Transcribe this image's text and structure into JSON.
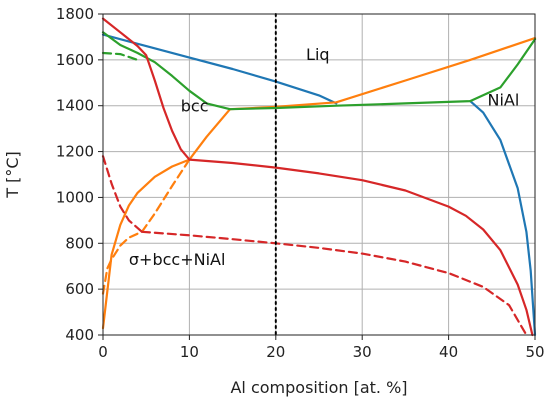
{
  "chart_data": {
    "type": "line",
    "title": "",
    "xlabel": "Al composition [at. %]",
    "ylabel": "T [°C]",
    "xlim": [
      0,
      50
    ],
    "ylim": [
      400,
      1800
    ],
    "xticks": [
      0,
      10,
      20,
      30,
      40,
      50
    ],
    "yticks": [
      400,
      600,
      800,
      1000,
      1200,
      1400,
      1600,
      1800
    ],
    "grid": true,
    "colors": {
      "blue": "#1f77b4",
      "orange": "#ff7f0e",
      "green": "#2ca02c",
      "red": "#d62728",
      "marker": "#000000"
    },
    "annotations": [
      {
        "text": "Liq",
        "x": 23.5,
        "y": 1600
      },
      {
        "text": "bcc",
        "x": 9,
        "y": 1375
      },
      {
        "text": "NiAl",
        "x": 44.5,
        "y": 1400
      },
      {
        "text": "σ+bcc+NiAl",
        "x": 3,
        "y": 705
      }
    ],
    "vlines": [
      {
        "x": 20,
        "style": "dotted",
        "color": "#000000"
      }
    ],
    "series": [
      {
        "color": "blue",
        "style": "solid",
        "x": [
          0,
          5,
          10,
          15,
          20,
          25,
          27
        ],
        "y": [
          1710,
          1660,
          1610,
          1560,
          1505,
          1445,
          1410
        ]
      },
      {
        "color": "blue",
        "style": "solid",
        "x": [
          42.5,
          44,
          46,
          48,
          49,
          49.5,
          50
        ],
        "y": [
          1420,
          1370,
          1250,
          1040,
          850,
          680,
          400
        ]
      },
      {
        "color": "orange",
        "style": "solid",
        "x": [
          14.7,
          20,
          27,
          35,
          42.5,
          50
        ],
        "y": [
          1385,
          1395,
          1415,
          1510,
          1600,
          1695
        ]
      },
      {
        "color": "orange",
        "style": "solid",
        "x": [
          0,
          1,
          2,
          3,
          4,
          6,
          8,
          10,
          12,
          14.7
        ],
        "y": [
          430,
          750,
          880,
          965,
          1020,
          1090,
          1135,
          1165,
          1265,
          1385
        ]
      },
      {
        "color": "orange",
        "style": "dashed",
        "x": [
          0,
          0.5,
          1,
          2,
          3,
          4.5,
          6,
          8,
          10
        ],
        "y": [
          580,
          690,
          730,
          790,
          825,
          850,
          930,
          1050,
          1165
        ]
      },
      {
        "color": "green",
        "style": "solid",
        "x": [
          0,
          2,
          4,
          6,
          8,
          10,
          12,
          14.7,
          20,
          27,
          35,
          42.5,
          46,
          48,
          50
        ],
        "y": [
          1720,
          1665,
          1630,
          1590,
          1530,
          1465,
          1410,
          1385,
          1390,
          1400,
          1410,
          1420,
          1480,
          1580,
          1690
        ]
      },
      {
        "color": "green",
        "style": "dashed",
        "x": [
          0,
          2,
          4
        ],
        "y": [
          1630,
          1625,
          1600
        ]
      },
      {
        "color": "red",
        "style": "solid",
        "x": [
          0,
          2,
          4,
          5,
          6,
          7,
          8,
          9,
          10
        ],
        "y": [
          1780,
          1720,
          1660,
          1620,
          1510,
          1390,
          1290,
          1210,
          1165
        ]
      },
      {
        "color": "red",
        "style": "solid",
        "x": [
          10,
          15,
          20,
          25,
          30,
          35,
          40,
          42,
          44,
          46,
          48,
          49,
          49.7
        ],
        "y": [
          1165,
          1150,
          1130,
          1105,
          1075,
          1030,
          960,
          920,
          860,
          770,
          620,
          510,
          400
        ]
      },
      {
        "color": "red",
        "style": "dashed",
        "x": [
          0,
          1,
          2,
          3,
          4.5
        ],
        "y": [
          1180,
          1060,
          960,
          900,
          850
        ]
      },
      {
        "color": "red",
        "style": "dashed",
        "x": [
          4.5,
          10,
          15,
          20,
          25,
          30,
          35,
          40,
          44,
          47,
          49
        ],
        "y": [
          850,
          835,
          818,
          800,
          780,
          755,
          720,
          670,
          610,
          530,
          400
        ]
      }
    ]
  }
}
